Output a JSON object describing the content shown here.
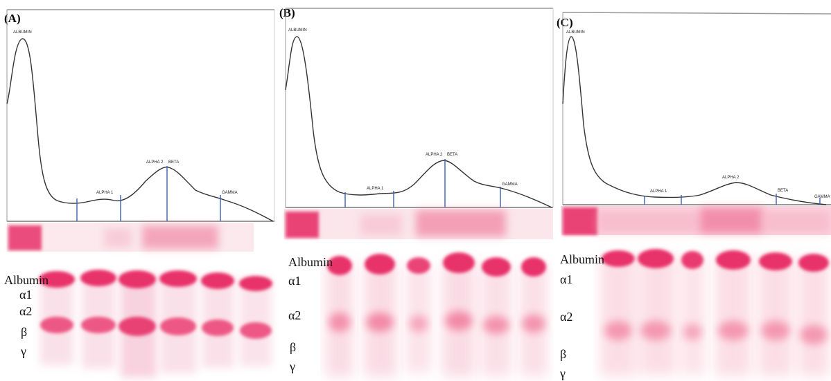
{
  "panels": [
    {
      "letter": "(A)",
      "peaks": [
        "ALBUMIN",
        "ALPHA 1",
        "ALPHA 2",
        "BETA",
        "GAMMA"
      ],
      "gel_labels": [
        "Albumin",
        "α1",
        "α2",
        "β",
        "γ"
      ]
    },
    {
      "letter": "(B)",
      "peaks": [
        "ALBUMIN",
        "ALPHA 1",
        "ALPHA 2",
        "BETA",
        "GAMMA"
      ],
      "gel_labels": [
        "Albumin",
        "α1",
        "α2",
        "β",
        "γ"
      ]
    },
    {
      "letter": "(C)",
      "peaks": [
        "ALBUMIN",
        "ALPHA 1",
        "ALPHA 2",
        "BETA",
        "GAMMA"
      ],
      "gel_labels": [
        "Albumin",
        "α1",
        "α2",
        "β",
        "γ"
      ]
    }
  ],
  "colors": {
    "stain": "#e8306a",
    "curve": "#333333",
    "marker": "#3a5fb0",
    "frame": "#9a9a9a"
  }
}
